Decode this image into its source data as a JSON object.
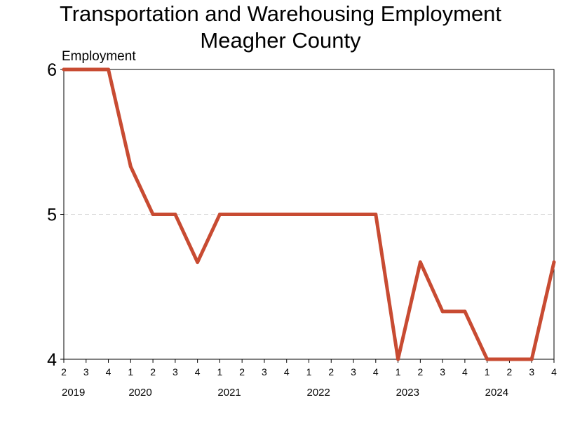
{
  "chart_data": {
    "type": "line",
    "title": "Transportation and Warehousing Employment",
    "subtitle": "Meagher County",
    "ylabel": "Employment",
    "xlabel": "",
    "ylim": [
      4,
      6
    ],
    "y_ticks": [
      4,
      5,
      6
    ],
    "grid": "horizontal dashed",
    "line_color": "#C84B32",
    "categories": [
      "2019 Q2",
      "2019 Q3",
      "2019 Q4",
      "2020 Q1",
      "2020 Q2",
      "2020 Q3",
      "2020 Q4",
      "2021 Q1",
      "2021 Q2",
      "2021 Q3",
      "2021 Q4",
      "2022 Q1",
      "2022 Q2",
      "2022 Q3",
      "2022 Q4",
      "2023 Q1",
      "2023 Q2",
      "2023 Q3",
      "2023 Q4",
      "2024 Q1",
      "2024 Q2",
      "2024 Q3",
      "2024 Q4"
    ],
    "quarter_labels": [
      "2",
      "3",
      "4",
      "1",
      "2",
      "3",
      "4",
      "1",
      "2",
      "3",
      "4",
      "1",
      "2",
      "3",
      "4",
      "1",
      "2",
      "3",
      "4",
      "1",
      "2",
      "3",
      "4"
    ],
    "year_labels": [
      {
        "label": "2019",
        "start_index": 0,
        "end_index": 0
      },
      {
        "label": "2020",
        "start_index": 3,
        "end_index": 3
      },
      {
        "label": "2021",
        "start_index": 7,
        "end_index": 7
      },
      {
        "label": "2022",
        "start_index": 11,
        "end_index": 11
      },
      {
        "label": "2023",
        "start_index": 15,
        "end_index": 15
      },
      {
        "label": "2024",
        "start_index": 19,
        "end_index": 19
      }
    ],
    "series": [
      {
        "values": [
          6,
          6,
          6,
          5.33,
          5,
          5,
          4.67,
          5,
          5,
          5,
          5,
          5,
          5,
          5,
          5,
          4,
          4.67,
          4.33,
          4.33,
          4,
          4,
          4,
          4.67
        ]
      }
    ]
  }
}
